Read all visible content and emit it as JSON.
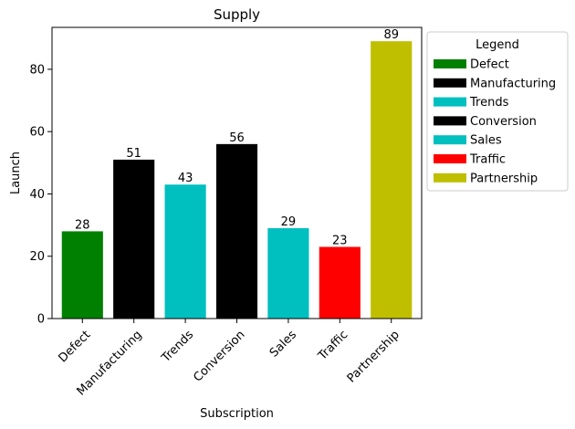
{
  "chart_data": {
    "type": "bar",
    "title": "Supply",
    "xlabel": "Subscription",
    "ylabel": "Launch",
    "categories": [
      "Defect",
      "Manufacturing",
      "Trends",
      "Conversion",
      "Sales",
      "Traffic",
      "Partnership"
    ],
    "values": [
      28,
      51,
      43,
      56,
      29,
      23,
      89
    ],
    "colors": [
      "#008000",
      "#000000",
      "#00bfbf",
      "#000000",
      "#00bfbf",
      "#ff0000",
      "#bfbf00"
    ],
    "ylim": [
      0,
      93.45
    ],
    "yticks": [
      0,
      20,
      40,
      60,
      80
    ],
    "grid": false,
    "legend": {
      "title": "Legend",
      "placement": "outside-right-top",
      "entries": [
        "Defect",
        "Manufacturing",
        "Trends",
        "Conversion",
        "Sales",
        "Traffic",
        "Partnership"
      ]
    }
  }
}
